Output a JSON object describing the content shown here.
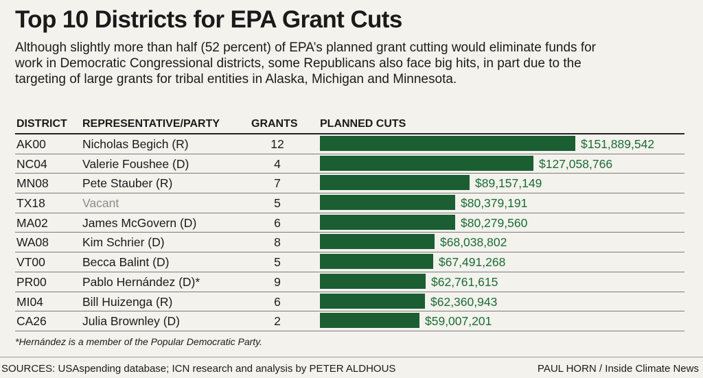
{
  "title": "Top 10 Districts for EPA Grant Cuts",
  "subtitle": "Although slightly more than half (52 percent) of EPA’s planned grant cutting would eliminate funds for work in Democratic Congressional districts, some Republicans also face big hits, in part due to the targeting of large grants for tribal entities in Alaska, Michigan and Minnesota.",
  "headers": {
    "district": "DISTRICT",
    "representative": "REPRESENTATIVE/PARTY",
    "grants": "GRANTS",
    "cuts": "PLANNED CUTS"
  },
  "chart_data": {
    "type": "bar",
    "title": "Top 10 Districts for EPA Grant Cuts",
    "xlabel": "PLANNED CUTS",
    "ylabel": "DISTRICT",
    "xlim": [
      0,
      151889542
    ],
    "bar_color": "#1b5e32",
    "label_color": "#1b6b37",
    "rows": [
      {
        "district": "AK00",
        "representative": "Nicholas Begich (R)",
        "grants": 12,
        "value": 151889542,
        "label": "$151,889,542",
        "vacant": false
      },
      {
        "district": "NC04",
        "representative": "Valerie Foushee (D)",
        "grants": 4,
        "value": 127058766,
        "label": "$127,058,766",
        "vacant": false
      },
      {
        "district": "MN08",
        "representative": "Pete Stauber (R)",
        "grants": 7,
        "value": 89157149,
        "label": "$89,157,149",
        "vacant": false
      },
      {
        "district": "TX18",
        "representative": "Vacant",
        "grants": 5,
        "value": 80379191,
        "label": "$80,379,191",
        "vacant": true
      },
      {
        "district": "MA02",
        "representative": "James McGovern (D)",
        "grants": 6,
        "value": 80279560,
        "label": "$80,279,560",
        "vacant": false
      },
      {
        "district": "WA08",
        "representative": "Kim Schrier (D)",
        "grants": 8,
        "value": 68038802,
        "label": "$68,038,802",
        "vacant": false
      },
      {
        "district": "VT00",
        "representative": "Becca Balint (D)",
        "grants": 5,
        "value": 67491268,
        "label": "$67,491,268",
        "vacant": false
      },
      {
        "district": "PR00",
        "representative": "Pablo Hernández (D)*",
        "grants": 9,
        "value": 62761615,
        "label": "$62,761,615",
        "vacant": false
      },
      {
        "district": "MI04",
        "representative": "Bill Huizenga (R)",
        "grants": 6,
        "value": 62360943,
        "label": "$62,360,943",
        "vacant": false
      },
      {
        "district": "CA26",
        "representative": "Julia Brownley (D)",
        "grants": 2,
        "value": 59007201,
        "label": "$59,007,201",
        "vacant": false
      }
    ]
  },
  "footnote": "*Hernández is a member of the Popular Democratic Party.",
  "sources": "SOURCES: USAspending database; ICN research and analysis by PETER ALDHOUS",
  "credit": "PAUL HORN / Inside Climate News"
}
